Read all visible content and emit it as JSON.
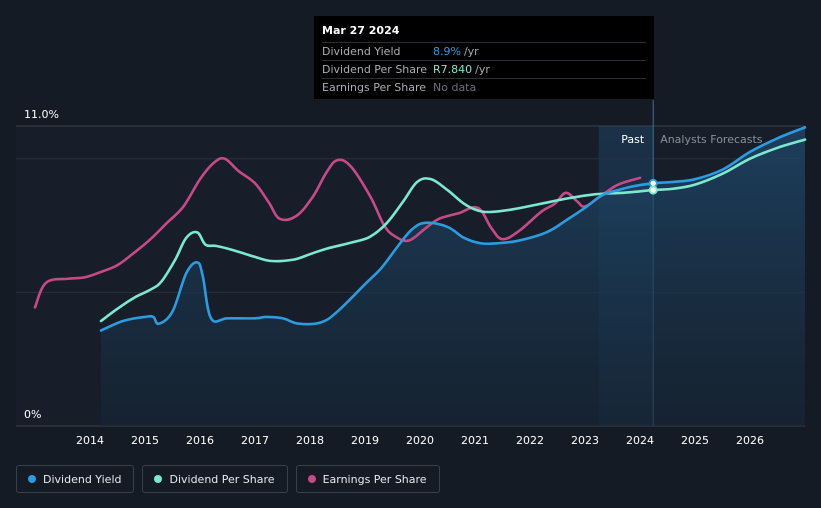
{
  "tooltip": {
    "date": "Mar 27 2024",
    "rows": [
      {
        "label": "Dividend Yield",
        "value": "8.9%",
        "unit": "/yr",
        "color": "#2d9be0"
      },
      {
        "label": "Dividend Per Share",
        "value": "R7.840",
        "unit": "/yr",
        "color": "#7de8d0"
      },
      {
        "label": "Earnings Per Share",
        "value": "No data",
        "unit": "",
        "color": "#6b7078"
      }
    ]
  },
  "chart_data": {
    "type": "line",
    "title": "",
    "xlabel": "",
    "ylabel": "",
    "y_tick_labels": [
      "11.0%",
      "0%"
    ],
    "ylim": [
      0,
      11
    ],
    "xlim": [
      2013.0,
      2027.0
    ],
    "x_ticks": [
      2014,
      2015,
      2016,
      2017,
      2018,
      2019,
      2020,
      2021,
      2022,
      2023,
      2024,
      2025,
      2026
    ],
    "x_tick_labels": [
      "2014",
      "2015",
      "2016",
      "2017",
      "2018",
      "2019",
      "2020",
      "2021",
      "2022",
      "2023",
      "2024",
      "2025",
      "2026"
    ],
    "regions": {
      "past_label": "Past",
      "forecast_label": "Analysts Forecasts",
      "highlight_start": 2023.25,
      "divider": 2024.24
    },
    "series": [
      {
        "name": "Dividend Yield",
        "color": "#2d9be0",
        "x": [
          2014.2,
          2014.6,
          2015.0,
          2015.15,
          2015.25,
          2015.5,
          2015.75,
          2015.95,
          2016.05,
          2016.2,
          2016.5,
          2017.0,
          2017.2,
          2017.5,
          2017.8,
          2018.2,
          2018.5,
          2019.0,
          2019.3,
          2019.6,
          2019.85,
          2020.1,
          2020.5,
          2020.8,
          2021.1,
          2021.4,
          2021.8,
          2022.3,
          2022.7,
          2023.0,
          2023.3,
          2023.6,
          2023.9,
          2024.24,
          2024.6,
          2025.0,
          2025.5,
          2026.0,
          2026.5,
          2027.0
        ],
        "values": [
          3.5,
          3.85,
          4.0,
          4.0,
          3.75,
          4.2,
          5.6,
          6.0,
          5.5,
          3.95,
          3.95,
          3.95,
          4.0,
          3.95,
          3.75,
          3.8,
          4.2,
          5.2,
          5.8,
          6.6,
          7.2,
          7.45,
          7.3,
          6.9,
          6.7,
          6.7,
          6.8,
          7.1,
          7.6,
          8.0,
          8.45,
          8.65,
          8.8,
          8.9,
          8.95,
          9.05,
          9.4,
          10.05,
          10.55,
          10.95
        ]
      },
      {
        "name": "Dividend Per Share",
        "color": "#7de8d0",
        "x": [
          2014.2,
          2014.5,
          2014.8,
          2015.1,
          2015.3,
          2015.55,
          2015.75,
          2015.95,
          2016.1,
          2016.3,
          2016.6,
          2017.0,
          2017.3,
          2017.7,
          2018.0,
          2018.3,
          2018.8,
          2019.1,
          2019.4,
          2019.7,
          2019.95,
          2020.2,
          2020.5,
          2020.8,
          2021.05,
          2021.3,
          2021.7,
          2022.2,
          2022.7,
          2023.2,
          2023.7,
          2024.24,
          2024.6,
          2025.0,
          2025.5,
          2026.0,
          2026.5,
          2027.0
        ],
        "values": [
          3.85,
          4.3,
          4.7,
          5.0,
          5.3,
          6.1,
          6.9,
          7.1,
          6.65,
          6.6,
          6.45,
          6.2,
          6.05,
          6.1,
          6.3,
          6.5,
          6.75,
          6.95,
          7.45,
          8.25,
          8.95,
          9.05,
          8.65,
          8.15,
          7.9,
          7.85,
          7.95,
          8.15,
          8.35,
          8.5,
          8.55,
          8.65,
          8.7,
          8.85,
          9.25,
          9.8,
          10.2,
          10.5
        ]
      },
      {
        "name": "Earnings Per Share",
        "color": "#c64a88",
        "x": [
          2013.0,
          2013.2,
          2013.6,
          2013.9,
          2014.2,
          2014.5,
          2014.8,
          2015.1,
          2015.4,
          2015.7,
          2016.0,
          2016.25,
          2016.45,
          2016.7,
          2017.0,
          2017.25,
          2017.45,
          2017.75,
          2018.05,
          2018.3,
          2018.5,
          2018.75,
          2019.1,
          2019.35,
          2019.55,
          2019.8,
          2020.1,
          2020.35,
          2020.7,
          2021.05,
          2021.3,
          2021.5,
          2021.8,
          2022.2,
          2022.45,
          2022.65,
          2022.85,
          2023.0,
          2023.3,
          2023.6,
          2024.0
        ],
        "values": [
          4.35,
          5.25,
          5.4,
          5.45,
          5.65,
          5.9,
          6.35,
          6.85,
          7.45,
          8.05,
          9.05,
          9.65,
          9.8,
          9.35,
          8.9,
          8.2,
          7.6,
          7.7,
          8.4,
          9.3,
          9.75,
          9.5,
          8.4,
          7.35,
          6.95,
          6.8,
          7.25,
          7.6,
          7.8,
          8.0,
          7.25,
          6.85,
          7.15,
          7.85,
          8.15,
          8.55,
          8.25,
          8.05,
          8.45,
          8.85,
          9.1
        ]
      }
    ],
    "tooltip_markers": [
      {
        "series": "Dividend Yield",
        "x": 2024.24,
        "value": 8.9
      },
      {
        "series": "Dividend Per Share",
        "x": 2024.24,
        "value": 8.65
      }
    ]
  },
  "legend": [
    {
      "label": "Dividend Yield",
      "color": "#2d9be0"
    },
    {
      "label": "Dividend Per Share",
      "color": "#7de8d0"
    },
    {
      "label": "Earnings Per Share",
      "color": "#c64a88"
    }
  ]
}
